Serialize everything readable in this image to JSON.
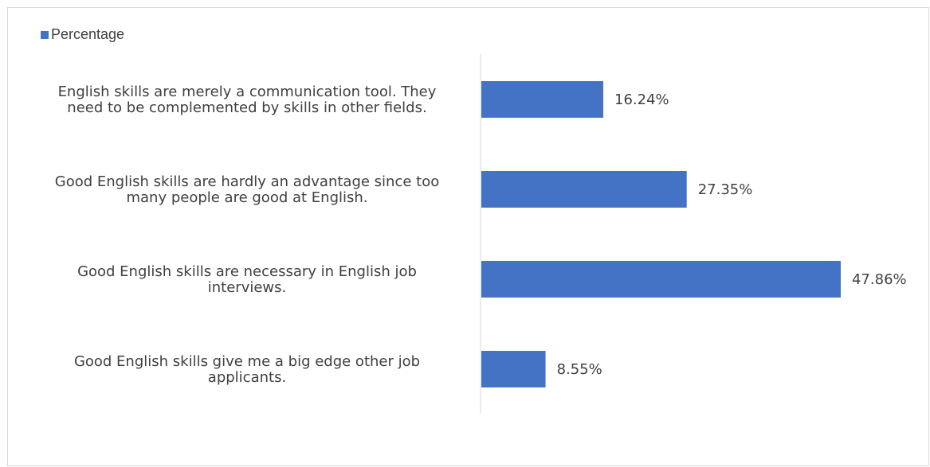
{
  "chart_data": {
    "type": "bar",
    "orientation": "horizontal",
    "categories": [
      "English skills are merely a communication tool. They need to be complemented by skills in other fields.",
      "Good English skills are hardly an advantage since too many people are good at English.",
      "Good English skills are necessary in English job interviews.",
      "Good English skills give me a big edge other job applicants."
    ],
    "category_lines": [
      [
        "English skills are merely a communication tool. They",
        "need to be complemented by skills in other fields."
      ],
      [
        "Good English skills are hardly an advantage since too",
        "many people are good at English."
      ],
      [
        "Good English skills are necessary in English job",
        "interviews."
      ],
      [
        "Good English skills give me a big edge other job",
        "applicants."
      ]
    ],
    "series": [
      {
        "name": "Percentage",
        "values": [
          16.24,
          27.35,
          47.86,
          8.55
        ],
        "labels": [
          "16.24%",
          "27.35%",
          "47.86%",
          "8.55%"
        ],
        "color": "#4472c4"
      }
    ],
    "xlim": [
      0,
      50
    ],
    "legend_position": "top-left",
    "grid": false
  }
}
